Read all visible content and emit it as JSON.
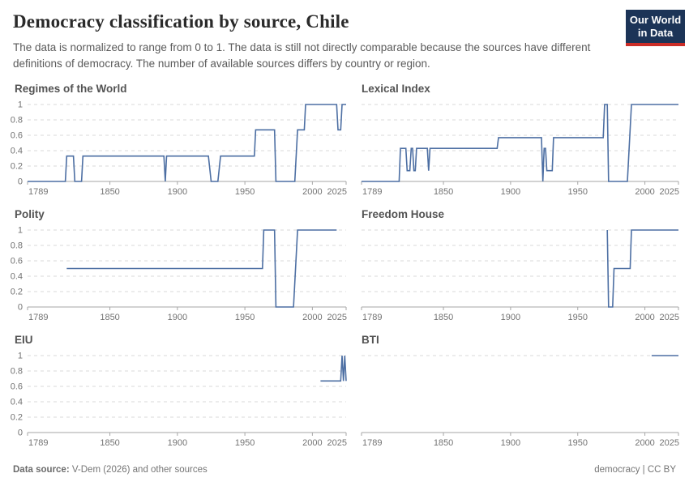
{
  "header": {
    "title": "Democracy classification by source, Chile",
    "subtitle": "The data is normalized to range from 0 to 1. The data is still not directly comparable because the sources have different definitions of democracy. The number of available sources differs by country or region.",
    "logo": {
      "line1": "Our World",
      "line2": "in Data",
      "bg": "#1c3457",
      "accent": "#cb2d27"
    }
  },
  "footer": {
    "source_label": "Data source:",
    "source_text": "V-Dem (2026) and other sources",
    "right_text": "democracy | CC BY"
  },
  "colors": {
    "line": "#4d6fa3",
    "grid": "#d8d8d8",
    "axis": "#a6a6a6",
    "tick_label": "#737373"
  },
  "chart_data": [
    {
      "type": "line",
      "title": "Regimes of the World",
      "show_y_labels": true,
      "xlim": [
        1789,
        2025
      ],
      "ylim": [
        0,
        1
      ],
      "x_ticks": [
        1789,
        1850,
        1900,
        1950,
        2000,
        2025
      ],
      "grid_values": [
        0,
        0.2,
        0.4,
        0.6,
        0.8,
        1
      ],
      "points": [
        [
          1789,
          0
        ],
        [
          1817,
          0
        ],
        [
          1818,
          0.33
        ],
        [
          1823,
          0.33
        ],
        [
          1824,
          0
        ],
        [
          1829,
          0
        ],
        [
          1830,
          0.33
        ],
        [
          1890,
          0.33
        ],
        [
          1891,
          0
        ],
        [
          1892,
          0.33
        ],
        [
          1923,
          0.33
        ],
        [
          1925,
          0
        ],
        [
          1930,
          0
        ],
        [
          1932,
          0.33
        ],
        [
          1957,
          0.33
        ],
        [
          1958,
          0.67
        ],
        [
          1972,
          0.67
        ],
        [
          1973,
          0
        ],
        [
          1987,
          0
        ],
        [
          1989,
          0.67
        ],
        [
          1994,
          0.67
        ],
        [
          1995,
          1
        ],
        [
          2018,
          1
        ],
        [
          2019,
          0.67
        ],
        [
          2021,
          0.67
        ],
        [
          2022,
          1
        ],
        [
          2025,
          1
        ]
      ]
    },
    {
      "type": "line",
      "title": "Lexical Index",
      "show_y_labels": false,
      "xlim": [
        1789,
        2025
      ],
      "ylim": [
        0,
        1
      ],
      "x_ticks": [
        1789,
        1850,
        1900,
        1950,
        2000,
        2025
      ],
      "grid_values": [
        0,
        0.2,
        0.4,
        0.6,
        0.8,
        1
      ],
      "points": [
        [
          1789,
          0
        ],
        [
          1817,
          0
        ],
        [
          1818,
          0.43
        ],
        [
          1822,
          0.43
        ],
        [
          1823,
          0.14
        ],
        [
          1825,
          0.14
        ],
        [
          1826,
          0.43
        ],
        [
          1827,
          0.43
        ],
        [
          1828,
          0.14
        ],
        [
          1829,
          0.14
        ],
        [
          1830,
          0.43
        ],
        [
          1838,
          0.43
        ],
        [
          1839,
          0.14
        ],
        [
          1840,
          0.43
        ],
        [
          1890,
          0.43
        ],
        [
          1891,
          0.57
        ],
        [
          1923,
          0.57
        ],
        [
          1924,
          0
        ],
        [
          1925,
          0.43
        ],
        [
          1926,
          0.43
        ],
        [
          1927,
          0.14
        ],
        [
          1931,
          0.14
        ],
        [
          1932,
          0.57
        ],
        [
          1969,
          0.57
        ],
        [
          1970,
          1
        ],
        [
          1972,
          1
        ],
        [
          1973,
          0
        ],
        [
          1987,
          0
        ],
        [
          1990,
          1
        ],
        [
          2025,
          1
        ]
      ]
    },
    {
      "type": "line",
      "title": "Polity",
      "show_y_labels": true,
      "xlim": [
        1789,
        2025
      ],
      "ylim": [
        0,
        1
      ],
      "x_ticks": [
        1789,
        1850,
        1900,
        1950,
        2000,
        2025
      ],
      "grid_values": [
        0,
        0.2,
        0.4,
        0.6,
        0.8,
        1
      ],
      "points": [
        [
          1818,
          0.5
        ],
        [
          1963,
          0.5
        ],
        [
          1964,
          1
        ],
        [
          1972,
          1
        ],
        [
          1973,
          0
        ],
        [
          1986,
          0
        ],
        [
          1989,
          1
        ],
        [
          2018,
          1
        ]
      ]
    },
    {
      "type": "line",
      "title": "Freedom House",
      "show_y_labels": false,
      "xlim": [
        1789,
        2025
      ],
      "ylim": [
        0,
        1
      ],
      "x_ticks": [
        1789,
        1850,
        1900,
        1950,
        2000,
        2025
      ],
      "grid_values": [
        0,
        0.2,
        0.4,
        0.6,
        0.8,
        1
      ],
      "points": [
        [
          1972,
          1
        ],
        [
          1973,
          0
        ],
        [
          1976,
          0
        ],
        [
          1977,
          0.5
        ],
        [
          1989,
          0.5
        ],
        [
          1990,
          1
        ],
        [
          2025,
          1
        ]
      ]
    },
    {
      "type": "line",
      "title": "EIU",
      "show_y_labels": true,
      "xlim": [
        1789,
        2025
      ],
      "ylim": [
        0,
        1
      ],
      "x_ticks": [
        1789,
        1850,
        1900,
        1950,
        2000,
        2025
      ],
      "grid_values": [
        0,
        0.2,
        0.4,
        0.6,
        0.8,
        1
      ],
      "points": [
        [
          2006,
          0.67
        ],
        [
          2021,
          0.67
        ],
        [
          2022,
          1
        ],
        [
          2023,
          0.67
        ],
        [
          2024,
          1
        ],
        [
          2025,
          0.67
        ]
      ]
    },
    {
      "type": "line",
      "title": "BTI",
      "show_y_labels": false,
      "xlim": [
        1789,
        2025
      ],
      "ylim": [
        0,
        1
      ],
      "x_ticks": [
        1789,
        1850,
        1900,
        1950,
        2000,
        2025
      ],
      "grid_values": [
        1
      ],
      "points": [
        [
          2005,
          1
        ],
        [
          2025,
          1
        ]
      ]
    }
  ]
}
